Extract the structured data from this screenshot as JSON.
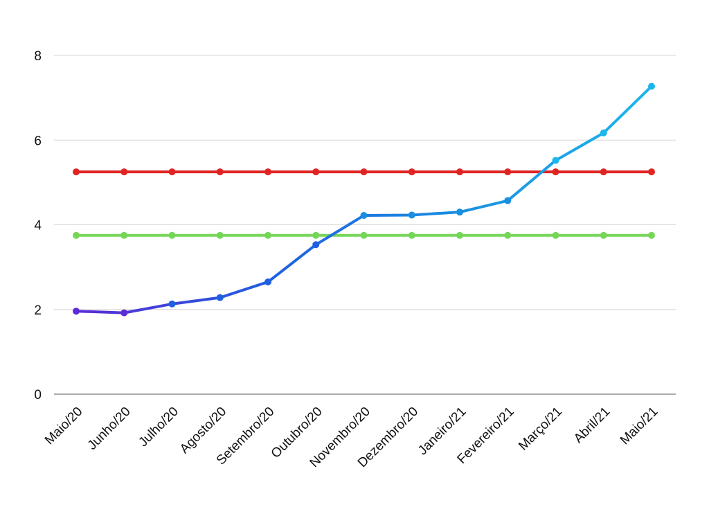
{
  "chart_data": {
    "type": "line",
    "title": "",
    "xlabel": "",
    "ylabel": "",
    "ylim": [
      0,
      8
    ],
    "yticks": [
      0,
      2,
      4,
      6,
      8
    ],
    "grid": true,
    "legend": "none",
    "categories": [
      "Maio/20",
      "Junho/20",
      "Julho/20",
      "Agosto/20",
      "Setembro/20",
      "Outubro/20",
      "Novembro/20",
      "Dezembro/20",
      "Janeiro/21",
      "Fevereiro/21",
      "Março/21",
      "Abril/21",
      "Maio/21"
    ],
    "series": [
      {
        "values": [
          1.96,
          1.92,
          2.13,
          2.28,
          2.65,
          3.53,
          4.22,
          4.23,
          4.3,
          4.57,
          5.52,
          6.17,
          7.27
        ],
        "gradient": [
          "#5b2bd6",
          "#1f5fe0",
          "#1a8fe0",
          "#1ab6ec"
        ]
      },
      {
        "values": [
          5.25,
          5.25,
          5.25,
          5.25,
          5.25,
          5.25,
          5.25,
          5.25,
          5.25,
          5.25,
          5.25,
          5.25,
          5.25
        ],
        "color": "#e02424"
      },
      {
        "values": [
          3.75,
          3.75,
          3.75,
          3.75,
          3.75,
          3.75,
          3.75,
          3.75,
          3.75,
          3.75,
          3.75,
          3.75,
          3.75
        ],
        "color": "#77d65a"
      }
    ]
  }
}
